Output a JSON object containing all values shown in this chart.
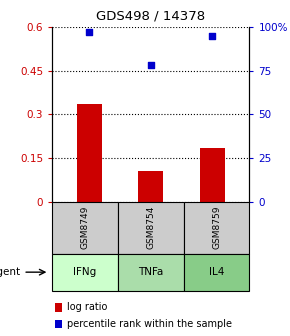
{
  "title": "GDS498 / 14378",
  "samples": [
    "GSM8749",
    "GSM8754",
    "GSM8759"
  ],
  "agents": [
    "IFNg",
    "TNFa",
    "IL4"
  ],
  "log_ratios": [
    0.335,
    0.105,
    0.185
  ],
  "percentile_ranks": [
    0.97,
    0.78,
    0.95
  ],
  "bar_color": "#cc0000",
  "dot_color": "#0000cc",
  "ylim_left": [
    0,
    0.6
  ],
  "ylim_right": [
    0,
    1.0
  ],
  "yticks_left": [
    0,
    0.15,
    0.3,
    0.45,
    0.6
  ],
  "ytick_labels_left": [
    "0",
    "0.15",
    "0.3",
    "0.45",
    "0.6"
  ],
  "ytick_labels_right": [
    "0",
    "25",
    "50",
    "75",
    "100%"
  ],
  "sample_bg_color": "#cccccc",
  "agent_bg_colors": [
    "#ccffcc",
    "#aaddaa",
    "#88cc88"
  ],
  "grid_color": "#555555",
  "background_color": "#ffffff",
  "legend_log_ratio_label": "log ratio",
  "legend_percentile_label": "percentile rank within the sample",
  "agent_label": "agent"
}
